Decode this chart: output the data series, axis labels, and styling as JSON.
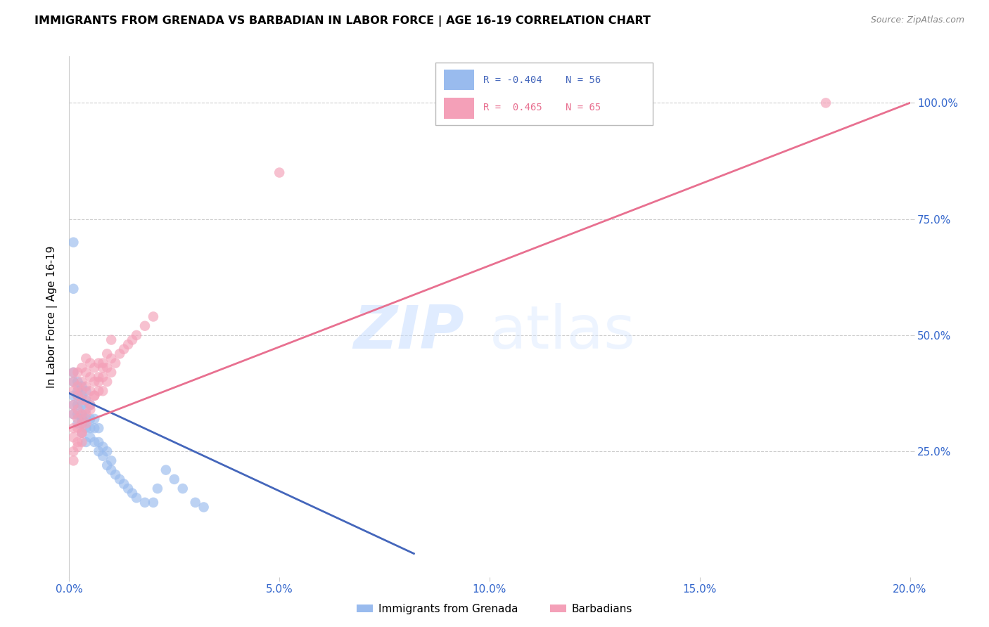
{
  "title": "IMMIGRANTS FROM GRENADA VS BARBADIAN IN LABOR FORCE | AGE 16-19 CORRELATION CHART",
  "source": "Source: ZipAtlas.com",
  "ylabel": "In Labor Force | Age 16-19",
  "xlim": [
    0.0,
    0.2
  ],
  "ylim": [
    -0.02,
    1.1
  ],
  "xticks": [
    0.0,
    0.05,
    0.1,
    0.15,
    0.2
  ],
  "xtick_labels": [
    "0.0%",
    "5.0%",
    "10.0%",
    "15.0%",
    "20.0%"
  ],
  "yticks": [
    0.0,
    0.25,
    0.5,
    0.75,
    1.0
  ],
  "ytick_labels": [
    "25.0%",
    "50.0%",
    "75.0%",
    "100.0%"
  ],
  "legend1_label": "Immigrants from Grenada",
  "legend2_label": "Barbadians",
  "r1": "-0.404",
  "n1": "56",
  "r2": "0.465",
  "n2": "65",
  "color_blue": "#99BBEE",
  "color_pink": "#F4A0B8",
  "line_color_blue": "#4466BB",
  "line_color_pink": "#E87090",
  "watermark_zip": "ZIP",
  "watermark_atlas": "atlas",
  "blue_x": [
    0.001,
    0.001,
    0.001,
    0.001,
    0.001,
    0.002,
    0.002,
    0.002,
    0.002,
    0.002,
    0.002,
    0.003,
    0.003,
    0.003,
    0.003,
    0.003,
    0.003,
    0.003,
    0.004,
    0.004,
    0.004,
    0.004,
    0.004,
    0.004,
    0.005,
    0.005,
    0.005,
    0.005,
    0.006,
    0.006,
    0.006,
    0.007,
    0.007,
    0.007,
    0.008,
    0.008,
    0.009,
    0.009,
    0.01,
    0.01,
    0.011,
    0.012,
    0.013,
    0.014,
    0.015,
    0.016,
    0.018,
    0.02,
    0.021,
    0.023,
    0.025,
    0.027,
    0.03,
    0.032,
    0.001,
    0.001
  ],
  "blue_y": [
    0.33,
    0.35,
    0.37,
    0.4,
    0.42,
    0.31,
    0.33,
    0.35,
    0.37,
    0.38,
    0.4,
    0.29,
    0.31,
    0.32,
    0.33,
    0.35,
    0.37,
    0.39,
    0.27,
    0.3,
    0.32,
    0.34,
    0.36,
    0.38,
    0.28,
    0.3,
    0.32,
    0.35,
    0.27,
    0.3,
    0.32,
    0.25,
    0.27,
    0.3,
    0.24,
    0.26,
    0.22,
    0.25,
    0.21,
    0.23,
    0.2,
    0.19,
    0.18,
    0.17,
    0.16,
    0.15,
    0.14,
    0.14,
    0.17,
    0.21,
    0.19,
    0.17,
    0.14,
    0.13,
    0.6,
    0.7
  ],
  "pink_x": [
    0.001,
    0.001,
    0.001,
    0.001,
    0.001,
    0.002,
    0.002,
    0.002,
    0.002,
    0.002,
    0.003,
    0.003,
    0.003,
    0.003,
    0.003,
    0.003,
    0.004,
    0.004,
    0.004,
    0.004,
    0.004,
    0.005,
    0.005,
    0.005,
    0.005,
    0.006,
    0.006,
    0.006,
    0.007,
    0.007,
    0.007,
    0.008,
    0.008,
    0.008,
    0.009,
    0.009,
    0.01,
    0.01,
    0.011,
    0.012,
    0.013,
    0.014,
    0.015,
    0.016,
    0.018,
    0.02,
    0.001,
    0.001,
    0.002,
    0.002,
    0.003,
    0.003,
    0.004,
    0.005,
    0.006,
    0.007,
    0.008,
    0.009,
    0.01,
    0.001,
    0.001,
    0.002,
    0.003,
    0.05,
    0.18
  ],
  "pink_y": [
    0.33,
    0.35,
    0.38,
    0.4,
    0.42,
    0.32,
    0.34,
    0.37,
    0.39,
    0.42,
    0.31,
    0.33,
    0.36,
    0.38,
    0.4,
    0.43,
    0.33,
    0.36,
    0.39,
    0.42,
    0.45,
    0.35,
    0.38,
    0.41,
    0.44,
    0.37,
    0.4,
    0.43,
    0.38,
    0.41,
    0.44,
    0.38,
    0.41,
    0.44,
    0.4,
    0.43,
    0.42,
    0.45,
    0.44,
    0.46,
    0.47,
    0.48,
    0.49,
    0.5,
    0.52,
    0.54,
    0.3,
    0.28,
    0.3,
    0.27,
    0.29,
    0.27,
    0.31,
    0.34,
    0.37,
    0.4,
    0.43,
    0.46,
    0.49,
    0.25,
    0.23,
    0.26,
    0.29,
    0.85,
    1.0
  ],
  "blue_line_x0": 0.0,
  "blue_line_y0": 0.375,
  "blue_line_x1": 0.082,
  "blue_line_y1": 0.03,
  "pink_line_x0": 0.0,
  "pink_line_y0": 0.3,
  "pink_line_x1": 0.2,
  "pink_line_y1": 1.0
}
